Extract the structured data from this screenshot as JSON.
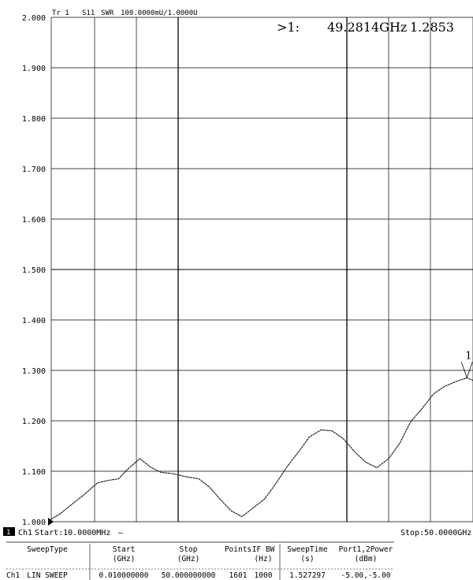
{
  "header": {
    "trace_label": "Tr 1",
    "measurement": "S11",
    "format": "SWR",
    "scale_ref": "100.0000mU/1.0000U"
  },
  "marker": {
    "readout_prefix": ">1:",
    "frequency_text": "49.2814GHz",
    "value_text": "1.2853",
    "label": "1"
  },
  "footer": {
    "channel_badge": "1",
    "channel": "Ch1",
    "start_text": "Start:10.0000MHz",
    "start_suffix": "—",
    "stop_text": "Stop:50.0000GHz"
  },
  "table": {
    "row_label": "Ch1",
    "columns": [
      {
        "head1": "SweepType",
        "head2": "",
        "value": "LIN SWEEP"
      },
      {
        "head1": "Start",
        "head2": "(GHz)",
        "value": "0.010000000"
      },
      {
        "head1": "Stop",
        "head2": "(GHz)",
        "value": "50.000000000"
      },
      {
        "head1": "Points",
        "head2": "",
        "value": "1601"
      },
      {
        "head1": "IF BW",
        "head2": "(Hz)",
        "value": "1000"
      },
      {
        "head1": "SweepTime",
        "head2": "(s)",
        "value": "1.527297"
      },
      {
        "head1": "Port1,2Power",
        "head2": "(dBm)",
        "value": "-5.00,-5.00"
      }
    ]
  },
  "chart_data": {
    "type": "line",
    "title": "",
    "xlabel": "",
    "ylabel": "",
    "xlim": [
      0.01,
      50.0
    ],
    "ylim": [
      1.0,
      2.0
    ],
    "yticks": [
      "2.000",
      "1.900",
      "1.800",
      "1.700",
      "1.600",
      "1.500",
      "1.400",
      "1.300",
      "1.200",
      "1.100",
      "1.000"
    ],
    "grid": true,
    "series": [
      {
        "x": [
          0.01,
          1.0,
          2.5,
          4.0,
          5.5,
          6.8,
          8.0,
          9.0,
          10.5,
          11.8,
          13.0,
          14.5,
          16.0,
          17.5,
          18.8,
          20.0,
          21.3,
          22.6,
          24.0,
          25.3,
          26.6,
          28.0,
          29.3,
          30.6,
          32.0,
          33.3,
          34.6,
          36.0,
          37.3,
          38.6,
          40.0,
          41.3,
          42.6,
          44.0,
          45.3,
          46.6,
          48.0,
          49.28,
          50.0
        ],
        "y": [
          1.005,
          1.015,
          1.035,
          1.055,
          1.077,
          1.082,
          1.085,
          1.103,
          1.125,
          1.108,
          1.098,
          1.095,
          1.089,
          1.085,
          1.068,
          1.045,
          1.022,
          1.01,
          1.028,
          1.045,
          1.075,
          1.11,
          1.138,
          1.168,
          1.182,
          1.18,
          1.165,
          1.138,
          1.118,
          1.107,
          1.125,
          1.155,
          1.198,
          1.225,
          1.253,
          1.268,
          1.278,
          1.2853,
          1.28
        ]
      }
    ]
  }
}
